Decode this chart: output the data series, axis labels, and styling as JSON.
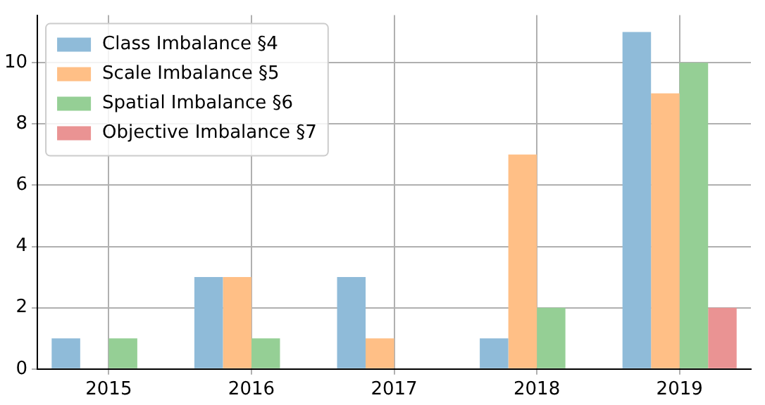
{
  "chart_data": {
    "type": "bar",
    "categories": [
      "2015",
      "2016",
      "2017",
      "2018",
      "2019"
    ],
    "series": [
      {
        "name": "Class Imbalance §4",
        "color": "#8fbbd9",
        "values": [
          1,
          3,
          3,
          1,
          11
        ]
      },
      {
        "name": "Scale Imbalance §5",
        "color": "#ffbf86",
        "values": [
          0,
          3,
          1,
          7,
          9
        ]
      },
      {
        "name": "Spatial Imbalance §6",
        "color": "#95cf95",
        "values": [
          1,
          1,
          0,
          2,
          10
        ]
      },
      {
        "name": "Objective Imbalance §7",
        "color": "#ea9393",
        "values": [
          0,
          0,
          0,
          0,
          2
        ]
      }
    ],
    "ylim": [
      0,
      11.55
    ],
    "yticks": [
      0,
      2,
      4,
      6,
      8,
      10
    ],
    "grid": true,
    "legend": "top left"
  }
}
